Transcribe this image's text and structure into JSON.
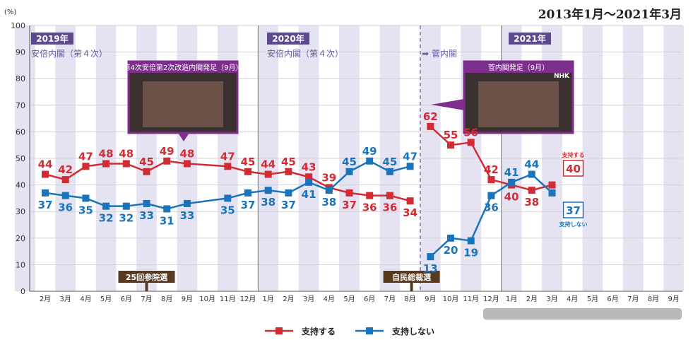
{
  "title": "2013年1月～2021年3月",
  "chart_data": {
    "type": "line",
    "y_unit": "(%)",
    "ylim": [
      0,
      100
    ],
    "y_ticks": [
      "0",
      "10",
      "20",
      "30",
      "40",
      "50",
      "60",
      "70",
      "80",
      "90",
      "100"
    ],
    "months": [
      "2月",
      "3月",
      "4月",
      "5月",
      "6月",
      "7月",
      "8月",
      "9月",
      "10月",
      "11月",
      "12月",
      "1月",
      "2月",
      "3月",
      "4月",
      "5月",
      "6月",
      "7月",
      "8月",
      "9月",
      "10月",
      "11月",
      "12月",
      "1月",
      "2月",
      "3月",
      "4月",
      "5月",
      "6月",
      "7月",
      "8月",
      "9月"
    ],
    "year_badges": [
      "2019年",
      "2020年",
      "2021年"
    ],
    "cabinet_labels": [
      "安倍内閣（第４次）",
      "安倍内閣（第４次）",
      "➡ 菅内閣"
    ],
    "photo_captions": [
      "第4次安倍第2次改造内閣発足（9月）",
      "菅内閣発足（9月）"
    ],
    "events": [
      "25回参院選",
      "自民総裁選"
    ],
    "series": [
      {
        "name": "支持する",
        "color": "#d22b33",
        "labels": [
          "44",
          "42",
          "47",
          "48",
          "48",
          "45",
          "49",
          "48",
          "47",
          "45",
          "44",
          "45",
          "43",
          "39",
          "37",
          "36",
          "36",
          "34",
          "62",
          "55",
          "56",
          "42",
          "40",
          "38",
          "40"
        ]
      },
      {
        "name": "支持しない",
        "color": "#1a74bb",
        "labels": [
          "37",
          "36",
          "35",
          "32",
          "32",
          "33",
          "31",
          "33",
          "35",
          "37",
          "38",
          "37",
          "41",
          "38",
          "45",
          "49",
          "45",
          "47",
          "13",
          "20",
          "19",
          "36",
          "41",
          "44",
          "37"
        ]
      }
    ],
    "end_labels": [
      "支持する",
      "支持しない"
    ],
    "logo": "NHK"
  }
}
